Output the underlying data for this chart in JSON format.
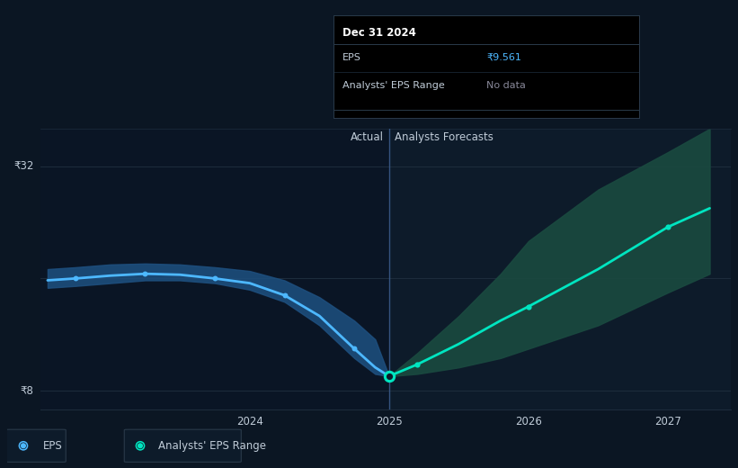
{
  "bg_color": "#0b1623",
  "plot_bg_color": "#0d1b2a",
  "left_panel_color": "#0a1525",
  "ylabel_32": "₹32",
  "ylabel_8": "₹8",
  "x_ticks": [
    2024,
    2025,
    2026,
    2027
  ],
  "actual_label": "Actual",
  "forecast_label": "Analysts Forecasts",
  "divider_x": 2025.0,
  "eps_actual_x": [
    2022.55,
    2022.75,
    2023.0,
    2023.25,
    2023.5,
    2023.75,
    2024.0,
    2024.25,
    2024.5,
    2024.75,
    2024.9,
    2025.0
  ],
  "eps_actual_y": [
    19.8,
    20.0,
    20.3,
    20.5,
    20.4,
    20.0,
    19.5,
    18.2,
    16.0,
    12.5,
    10.5,
    9.56
  ],
  "eps_band_upper_y": [
    21.0,
    21.2,
    21.5,
    21.6,
    21.5,
    21.2,
    20.8,
    19.8,
    18.0,
    15.5,
    13.5,
    9.56
  ],
  "eps_band_lower_y": [
    19.0,
    19.2,
    19.5,
    19.8,
    19.8,
    19.5,
    18.8,
    17.5,
    15.0,
    11.5,
    9.8,
    9.56
  ],
  "forecast_x": [
    2025.0,
    2025.2,
    2025.5,
    2025.8,
    2026.0,
    2026.5,
    2027.0,
    2027.3
  ],
  "forecast_y": [
    9.56,
    10.8,
    13.0,
    15.5,
    17.0,
    21.0,
    25.5,
    27.5
  ],
  "forecast_band_upper_y": [
    9.56,
    12.0,
    16.0,
    20.5,
    24.0,
    29.5,
    33.5,
    36.0
  ],
  "forecast_band_lower_y": [
    9.56,
    9.8,
    10.5,
    11.5,
    12.5,
    15.0,
    18.5,
    20.5
  ],
  "eps_line_color": "#4db8ff",
  "eps_band_color": "#1e5080",
  "forecast_line_color": "#00e5c0",
  "forecast_band_color": "#1a4a40",
  "divider_color": "#4db8ff",
  "mid_gridline_color": "#1e2d3d",
  "text_color": "#c0ccd8",
  "tooltip_bg": "#000000",
  "tooltip_border": "#2a3a4a",
  "tooltip_title": "Dec 31 2024",
  "tooltip_eps_label": "EPS",
  "tooltip_eps_value": "₹9.561",
  "tooltip_eps_value_color": "#4db8ff",
  "tooltip_range_label": "Analysts' EPS Range",
  "tooltip_range_value": "No data",
  "legend_eps_label": "EPS",
  "legend_range_label": "Analysts' EPS Range",
  "ylim_min": 6.0,
  "ylim_max": 36.0,
  "xlim_min": 2022.5,
  "xlim_max": 2027.45
}
